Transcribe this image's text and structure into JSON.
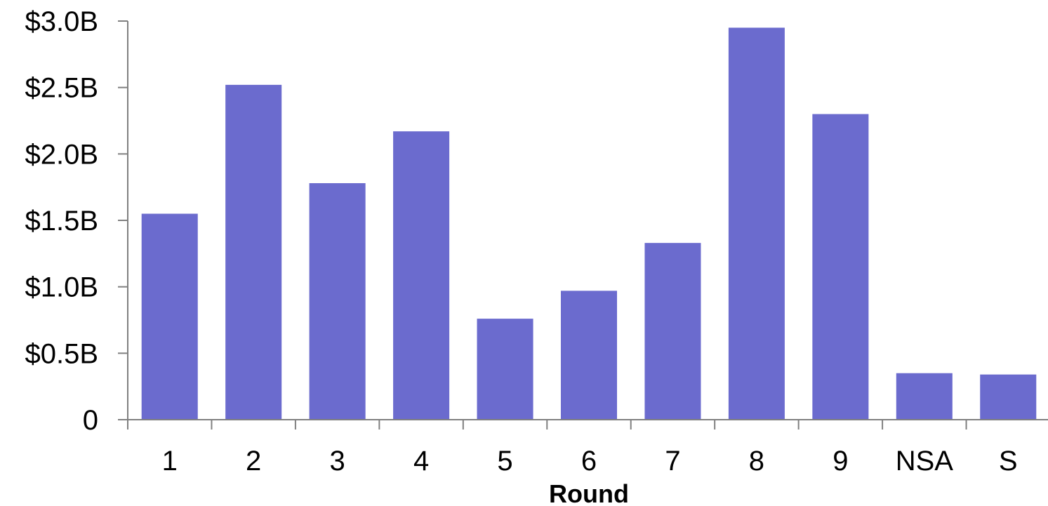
{
  "chart_data": {
    "type": "bar",
    "title": "",
    "xlabel": "Round",
    "ylabel": "",
    "categories": [
      "1",
      "2",
      "3",
      "4",
      "5",
      "6",
      "7",
      "8",
      "9",
      "NSA",
      "S"
    ],
    "series": [
      {
        "values": [
          1.55,
          2.52,
          1.78,
          2.17,
          0.76,
          0.97,
          1.33,
          2.95,
          2.3,
          0.35,
          0.34
        ],
        "color": "#6b6bce"
      }
    ],
    "ylim": [
      0,
      3.0
    ],
    "yticks": [
      0,
      0.5,
      1.0,
      1.5,
      2.0,
      2.5,
      3.0
    ],
    "ytick_labels": [
      "0",
      "$0.5B",
      "$1.0B",
      "$1.5B",
      "$2.0B",
      "$2.5B",
      "$3.0B"
    ],
    "grid": false,
    "legend": "none"
  }
}
